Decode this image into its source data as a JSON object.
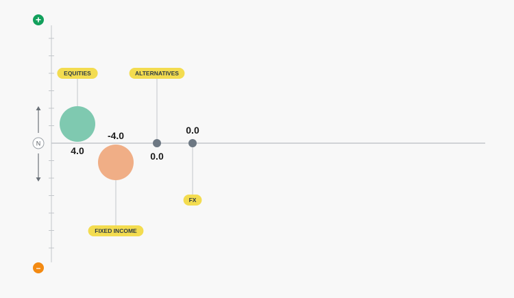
{
  "chart_data": {
    "type": "scatter",
    "ylim": [
      -8,
      8
    ],
    "grid": false,
    "indicators": {
      "top": {
        "symbol": "+",
        "color": "#12a05c"
      },
      "neutral": {
        "label": "N"
      },
      "bottom": {
        "symbol": "–",
        "color": "#f38a12"
      }
    },
    "points": [
      {
        "name": "EQUITIES",
        "value": 4.0,
        "value_label": "4.0",
        "color": "#7fc9b0",
        "label_side": "above",
        "value_side": "below"
      },
      {
        "name": "FIXED INCOME",
        "value": -4.0,
        "value_label": "-4.0",
        "color": "#f0ae86",
        "label_side": "below",
        "value_side": "above"
      },
      {
        "name": "ALTERNATIVES",
        "value": 0.0,
        "value_label": "0.0",
        "color": "#6d7883",
        "label_side": "above",
        "value_side": "below"
      },
      {
        "name": "FX",
        "value": 0.0,
        "value_label": "0.0",
        "color": "#6d7883",
        "label_side": "below",
        "value_side": "above"
      }
    ],
    "colors": {
      "label_bg": "#f3dc50",
      "label_text": "#2f3b43",
      "axis": "#c2c6ca",
      "value_text": "#1a1a1a"
    }
  }
}
